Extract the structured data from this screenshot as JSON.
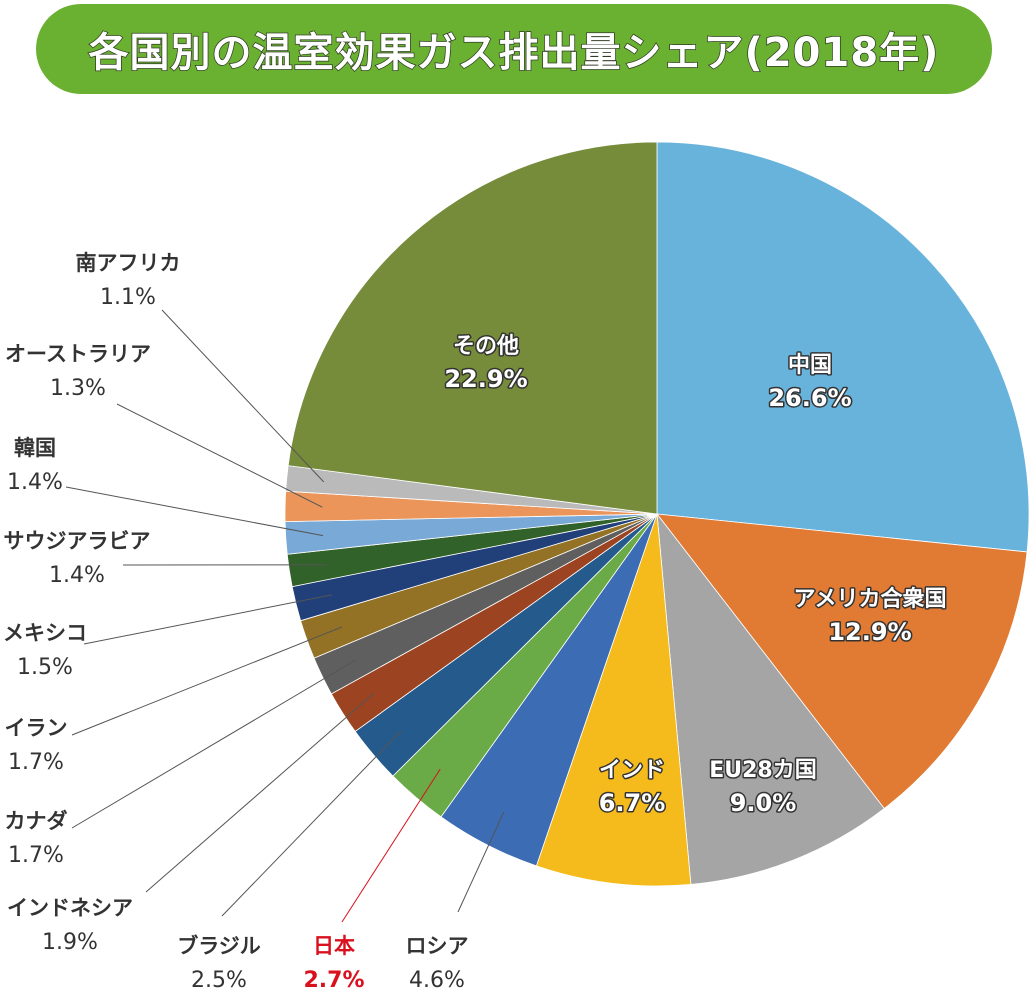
{
  "chart_data": {
    "type": "pie",
    "title": "各国別の温室効果ガス排出量シェア(2018年)",
    "colors": {
      "title_banner": "#6ab132",
      "highlight_text": "#d9101e",
      "leader_line": "#555555",
      "label_text": "#333333"
    },
    "slices": [
      {
        "name": "中国",
        "value": 26.6,
        "label": "26.6%",
        "color": "#68b3dc",
        "label_style": "inside"
      },
      {
        "name": "アメリカ合衆国",
        "value": 12.9,
        "label": "12.9%",
        "color": "#e17a33",
        "label_style": "inside"
      },
      {
        "name": "EU28カ国",
        "value": 9.0,
        "label": "9.0%",
        "color": "#a5a5a5",
        "label_style": "inside"
      },
      {
        "name": "インド",
        "value": 6.7,
        "label": "6.7%",
        "color": "#f5bb1c",
        "label_style": "inside"
      },
      {
        "name": "ロシア",
        "value": 4.6,
        "label": "4.6%",
        "color": "#3c6cb4",
        "label_style": "outside"
      },
      {
        "name": "日本",
        "value": 2.7,
        "label": "2.7%",
        "color": "#6aaa47",
        "label_style": "outside",
        "highlight": true
      },
      {
        "name": "ブラジル",
        "value": 2.5,
        "label": "2.5%",
        "color": "#245a8c",
        "label_style": "outside"
      },
      {
        "name": "インドネシア",
        "value": 1.9,
        "label": "1.9%",
        "color": "#9c4421",
        "label_style": "outside"
      },
      {
        "name": "カナダ",
        "value": 1.7,
        "label": "1.7%",
        "color": "#5f5f5f",
        "label_style": "outside"
      },
      {
        "name": "イラン",
        "value": 1.7,
        "label": "1.7%",
        "color": "#937226",
        "label_style": "outside"
      },
      {
        "name": "メキシコ",
        "value": 1.5,
        "label": "1.5%",
        "color": "#213f78",
        "label_style": "outside"
      },
      {
        "name": "サウジアラビア",
        "value": 1.4,
        "label": "1.4%",
        "color": "#31622a",
        "label_style": "outside"
      },
      {
        "name": "韓国",
        "value": 1.4,
        "label": "1.4%",
        "color": "#79a9d7",
        "label_style": "outside"
      },
      {
        "name": "オーストラリア",
        "value": 1.3,
        "label": "1.3%",
        "color": "#eb955a",
        "label_style": "outside"
      },
      {
        "name": "南アフリカ",
        "value": 1.1,
        "label": "1.1%",
        "color": "#bababa",
        "label_style": "outside"
      },
      {
        "name": "その他",
        "value": 22.9,
        "label": "22.9%",
        "color": "#768c3a",
        "label_style": "inside"
      }
    ]
  }
}
